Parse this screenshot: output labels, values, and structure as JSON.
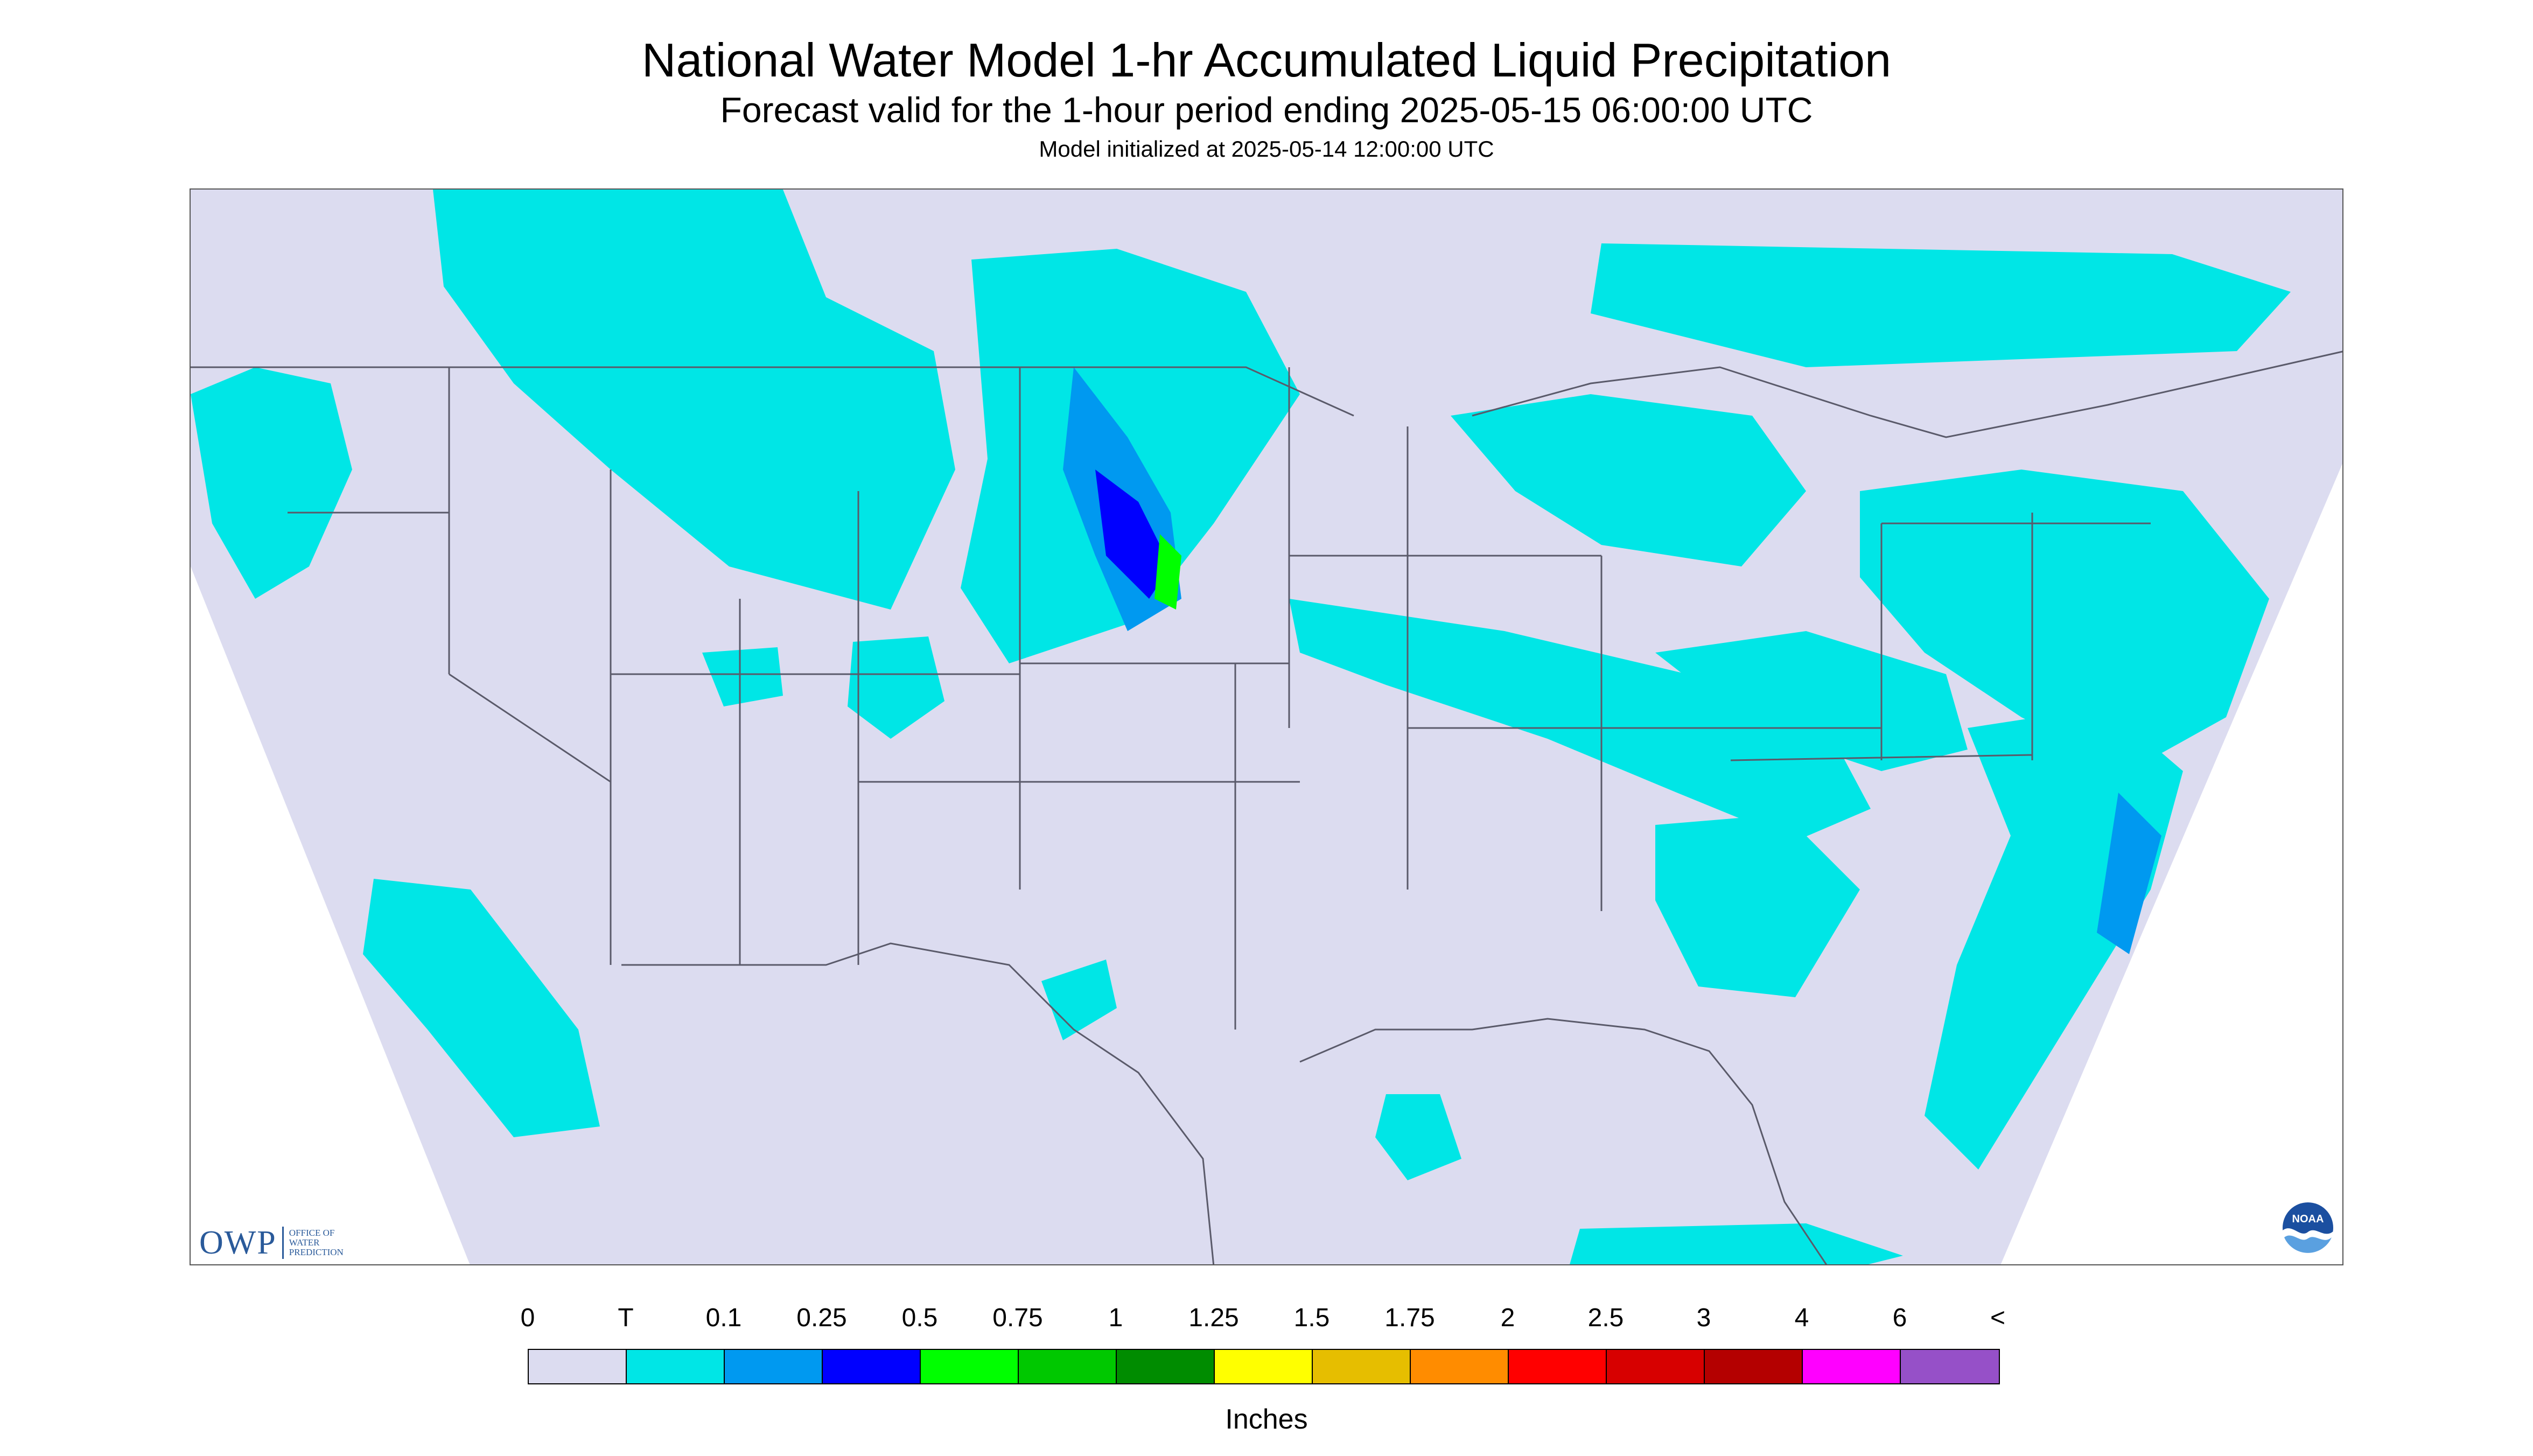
{
  "header": {
    "title": "National Water Model 1-hr Accumulated Liquid Precipitation",
    "subtitle": "Forecast valid for the 1-hour period ending 2025-05-15 06:00:00 UTC",
    "init": "Model initialized at 2025-05-14 12:00:00 UTC"
  },
  "colors": {
    "map_background": "#dcdcf0",
    "outside_domain": "#ffffff",
    "boundary_lines": "#5a5a6a"
  },
  "legend": {
    "labels": [
      "0",
      "T",
      "0.1",
      "0.25",
      "0.5",
      "0.75",
      "1",
      "1.25",
      "1.5",
      "1.75",
      "2",
      "2.5",
      "3",
      "4",
      "6",
      "<"
    ],
    "swatch_colors": [
      "#dcdcf0",
      "#00e6e6",
      "#0099f0",
      "#0000ff",
      "#00ff00",
      "#00c800",
      "#008c00",
      "#ffff00",
      "#e6be00",
      "#ff8c00",
      "#ff0000",
      "#d70000",
      "#b40000",
      "#ff00ff",
      "#9650c8"
    ],
    "units": "Inches"
  },
  "logos": {
    "owp_letters": "OWP",
    "owp_text": "OFFICE OF WATER PREDICTION",
    "noaa_text": "NOAA"
  }
}
